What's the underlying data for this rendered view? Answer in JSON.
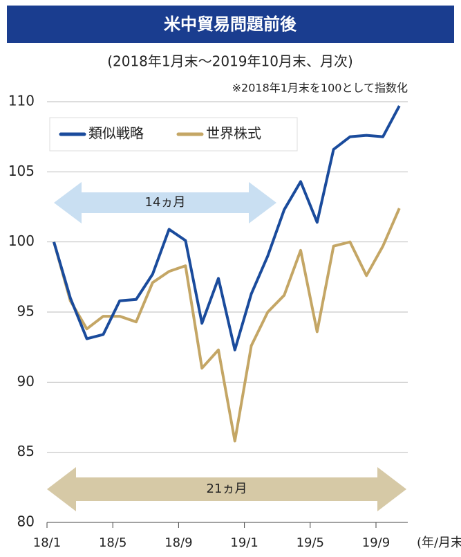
{
  "chart_data": {
    "type": "line",
    "title": "米中貿易問題前後",
    "subtitle": "(2018年1月末〜2019年10月末、月次)",
    "note": "※2018年1月末を100として指数化",
    "x_unit": "(年/月末)",
    "annotations": [
      "14ヵ月",
      "21ヵ月"
    ],
    "categories": [
      "18/1",
      null,
      null,
      null,
      "18/5",
      null,
      null,
      null,
      "18/9",
      null,
      null,
      null,
      "19/1",
      null,
      null,
      null,
      "19/5",
      null,
      null,
      null,
      "19/9",
      null
    ],
    "series": [
      {
        "name": "類似戦略",
        "color": "#1a4b9c",
        "values": [
          100,
          96.0,
          93.1,
          93.4,
          95.8,
          95.9,
          97.7,
          100.9,
          100.1,
          94.2,
          97.4,
          92.3,
          96.3,
          99.0,
          102.3,
          104.3,
          101.4,
          106.6,
          107.5,
          107.6,
          107.5,
          109.7
        ]
      },
      {
        "name": "世界株式",
        "color": "#c4a665",
        "values": [
          100,
          95.8,
          93.8,
          94.7,
          94.7,
          94.3,
          97.1,
          97.9,
          98.3,
          91.0,
          92.3,
          85.8,
          92.6,
          95.0,
          96.2,
          99.4,
          93.6,
          99.7,
          100.0,
          97.6,
          99.7,
          102.4
        ]
      }
    ],
    "ylim": [
      80,
      110
    ],
    "yticks": [
      80,
      85,
      90,
      95,
      100,
      105,
      110
    ],
    "grid": true,
    "legend": "upper left"
  }
}
